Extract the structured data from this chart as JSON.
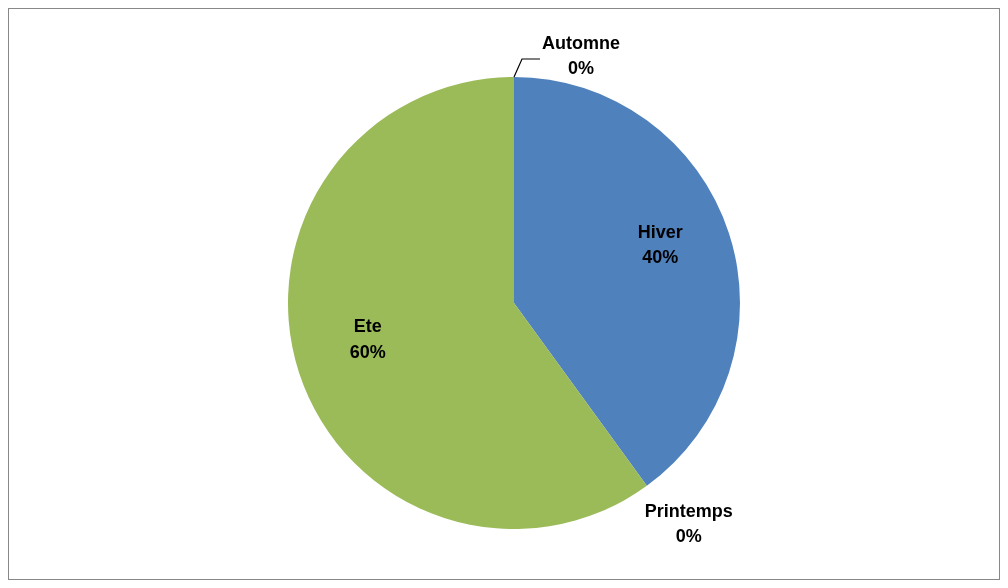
{
  "chart_data": {
    "type": "pie",
    "categories": [
      "Hiver",
      "Printemps",
      "Ete",
      "Automne"
    ],
    "values": [
      40,
      0,
      60,
      0
    ],
    "value_labels": [
      "40%",
      "0%",
      "60%",
      "0%"
    ],
    "colors": [
      "#4f81bd",
      "#c0504d",
      "#9bbb59",
      "#8064a2"
    ]
  }
}
